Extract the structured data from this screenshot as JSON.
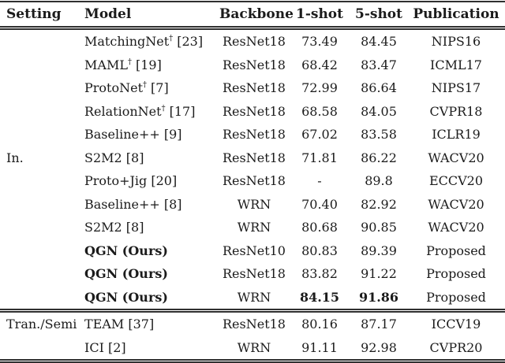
{
  "page": {
    "background_color": "#ffffff",
    "text_color": "#1b1b1b",
    "rule_color": "#2f2f2f"
  },
  "table": {
    "columns": [
      {
        "key": "setting",
        "label": "Setting",
        "align": "left"
      },
      {
        "key": "model",
        "label": "Model",
        "align": "left"
      },
      {
        "key": "backbone",
        "label": "Backbone",
        "align": "center"
      },
      {
        "key": "one_shot",
        "label": "1-shot",
        "align": "center"
      },
      {
        "key": "five_shot",
        "label": "5-shot",
        "align": "center"
      },
      {
        "key": "publication",
        "label": "Publication",
        "align": "center"
      }
    ],
    "sections": [
      {
        "setting_label": "In.",
        "setting_label_row": 5,
        "rows": [
          {
            "model": "MatchingNet",
            "model_sup": "†",
            "model_ref": "[23]",
            "backbone": "ResNet18",
            "one_shot": "73.49",
            "five_shot": "84.45",
            "publication": "NIPS16",
            "bold_model": false,
            "bold_scores": false
          },
          {
            "model": "MAML",
            "model_sup": "†",
            "model_ref": "[19]",
            "backbone": "ResNet18",
            "one_shot": "68.42",
            "five_shot": "83.47",
            "publication": "ICML17",
            "bold_model": false,
            "bold_scores": false
          },
          {
            "model": "ProtoNet",
            "model_sup": "†",
            "model_ref": "[7]",
            "backbone": "ResNet18",
            "one_shot": "72.99",
            "five_shot": "86.64",
            "publication": "NIPS17",
            "bold_model": false,
            "bold_scores": false
          },
          {
            "model": "RelationNet",
            "model_sup": "†",
            "model_ref": "[17]",
            "backbone": "ResNet18",
            "one_shot": "68.58",
            "five_shot": "84.05",
            "publication": "CVPR18",
            "bold_model": false,
            "bold_scores": false
          },
          {
            "model": "Baseline++",
            "model_sup": "",
            "model_ref": "[9]",
            "backbone": "ResNet18",
            "one_shot": "67.02",
            "five_shot": "83.58",
            "publication": "ICLR19",
            "bold_model": false,
            "bold_scores": false
          },
          {
            "model": "S2M2",
            "model_sup": "",
            "model_ref": "[8]",
            "backbone": "ResNet18",
            "one_shot": "71.81",
            "five_shot": "86.22",
            "publication": "WACV20",
            "bold_model": false,
            "bold_scores": false
          },
          {
            "model": "Proto+Jig",
            "model_sup": "",
            "model_ref": "[20]",
            "backbone": "ResNet18",
            "one_shot": "-",
            "five_shot": "89.8",
            "publication": "ECCV20",
            "bold_model": false,
            "bold_scores": false
          },
          {
            "model": "Baseline++",
            "model_sup": "",
            "model_ref": "[8]",
            "backbone": "WRN",
            "one_shot": "70.40",
            "five_shot": "82.92",
            "publication": "WACV20",
            "bold_model": false,
            "bold_scores": false
          },
          {
            "model": "S2M2",
            "model_sup": "",
            "model_ref": "[8]",
            "backbone": "WRN",
            "one_shot": "80.68",
            "five_shot": "90.85",
            "publication": "WACV20",
            "bold_model": false,
            "bold_scores": false
          },
          {
            "model": "QGN (Ours)",
            "model_sup": "",
            "model_ref": "",
            "backbone": "ResNet10",
            "one_shot": "80.83",
            "five_shot": "89.39",
            "publication": "Proposed",
            "bold_model": true,
            "bold_scores": false
          },
          {
            "model": "QGN (Ours)",
            "model_sup": "",
            "model_ref": "",
            "backbone": "ResNet18",
            "one_shot": "83.82",
            "five_shot": "91.22",
            "publication": "Proposed",
            "bold_model": true,
            "bold_scores": false
          },
          {
            "model": "QGN (Ours)",
            "model_sup": "",
            "model_ref": "",
            "backbone": "WRN",
            "one_shot": "84.15",
            "five_shot": "91.86",
            "publication": "Proposed",
            "bold_model": true,
            "bold_scores": true
          }
        ]
      },
      {
        "setting_label": "Tran./Semi",
        "setting_label_row": 0,
        "rows": [
          {
            "model": "TEAM",
            "model_sup": "",
            "model_ref": "[37]",
            "backbone": "ResNet18",
            "one_shot": "80.16",
            "five_shot": "87.17",
            "publication": "ICCV19",
            "bold_model": false,
            "bold_scores": false
          },
          {
            "model": "ICI",
            "model_sup": "",
            "model_ref": "[2]",
            "backbone": "WRN",
            "one_shot": "91.11",
            "five_shot": "92.98",
            "publication": "CVPR20",
            "bold_model": false,
            "bold_scores": false
          }
        ]
      }
    ]
  }
}
